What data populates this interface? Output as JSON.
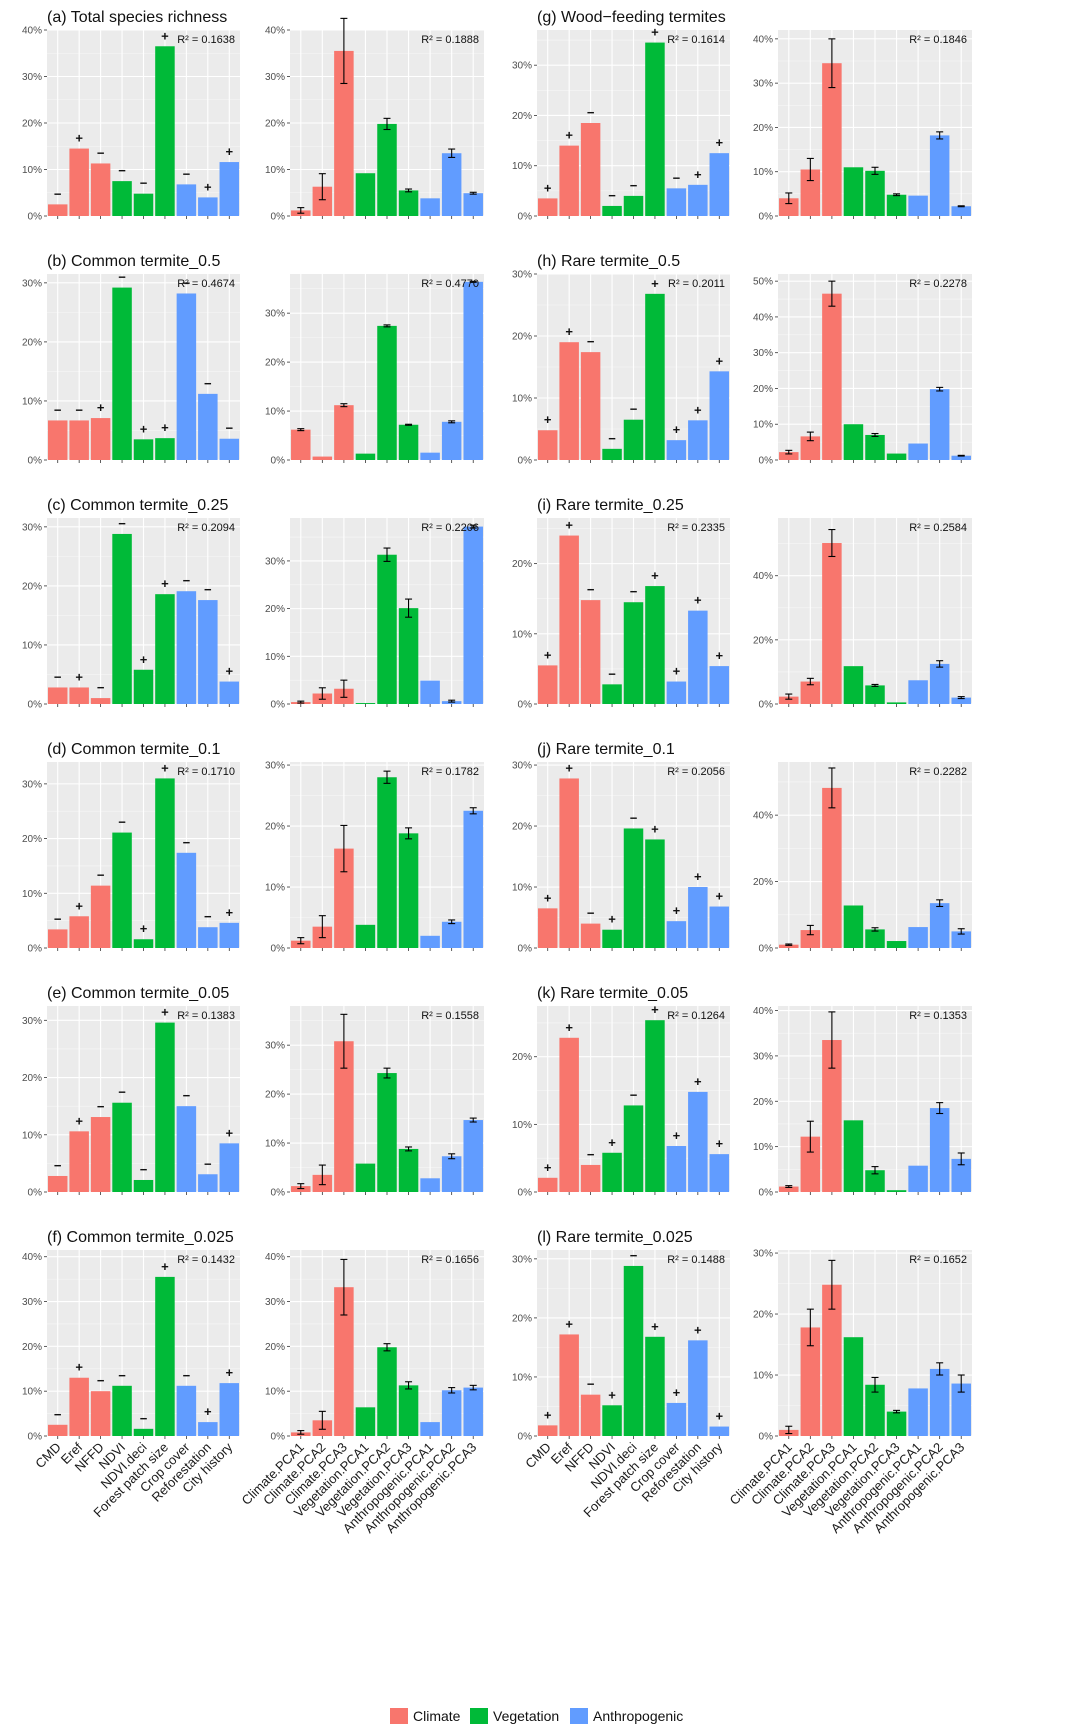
{
  "colors": {
    "Climate": "#F8766D",
    "Vegetation": "#00BA38",
    "Anthropogenic": "#619CFF",
    "panel_bg": "#EBEBEB",
    "grid": "#FFFFFF"
  },
  "legend": {
    "entries": [
      "Climate",
      "Vegetation",
      "Anthropogenic"
    ]
  },
  "chart_data": [
    {
      "type": "bar",
      "id": "a_left",
      "title": "(a) Total species richness",
      "r2": "R² = 0.1638",
      "ylim": [
        0,
        40
      ],
      "yticks": [
        0,
        10,
        20,
        30,
        40
      ],
      "values": [
        2.5,
        14.5,
        11.3,
        7.5,
        4.8,
        36.5,
        6.8,
        4,
        11.6
      ],
      "signs": [
        "−",
        "+",
        "−",
        "−",
        "−",
        "+",
        "−",
        "+",
        "+"
      ]
    },
    {
      "type": "bar",
      "id": "a_right",
      "title": "",
      "r2": "R² = 0.1888",
      "ylim": [
        0,
        40
      ],
      "yticks": [
        0,
        10,
        20,
        30,
        40
      ],
      "values": [
        1.2,
        6.3,
        35.5,
        9.2,
        19.8,
        5.5,
        3.8,
        13.5,
        4.9
      ],
      "errors": [
        0.6,
        2.8,
        7,
        0,
        1.2,
        0.3,
        0,
        0.9,
        0.2
      ]
    },
    {
      "type": "bar",
      "id": "g_left",
      "title": "(g) Wood−feeding termites",
      "r2": "R² = 0.1614",
      "ylim": [
        0,
        37
      ],
      "yticks": [
        0,
        10,
        20,
        30
      ],
      "values": [
        3.5,
        14,
        18.5,
        2,
        4,
        34.5,
        5.5,
        6.2,
        12.5
      ],
      "signs": [
        "+",
        "+",
        "−",
        "−",
        "−",
        "+",
        "−",
        "+",
        "+"
      ]
    },
    {
      "type": "bar",
      "id": "g_right",
      "title": "",
      "r2": "R² = 0.1846",
      "ylim": [
        0,
        42
      ],
      "yticks": [
        0,
        10,
        20,
        30,
        40
      ],
      "values": [
        4,
        10.5,
        34.5,
        11,
        10.2,
        4.8,
        4.6,
        18.2,
        2.2
      ],
      "errors": [
        1.2,
        2.5,
        5.5,
        0,
        0.8,
        0.2,
        0,
        0.8,
        0.1
      ]
    },
    {
      "type": "bar",
      "id": "b_left",
      "title": "(b) Common termite_0.5",
      "r2": "R² = 0.4674",
      "ylim": [
        0,
        31.5
      ],
      "yticks": [
        0,
        10,
        20,
        30
      ],
      "values": [
        6.7,
        6.7,
        7.1,
        29.2,
        3.5,
        3.7,
        28.2,
        11.2,
        3.6
      ],
      "signs": [
        "−",
        "−",
        "+",
        "−",
        "+",
        "+",
        "−",
        "−",
        "−"
      ]
    },
    {
      "type": "bar",
      "id": "b_right",
      "title": "",
      "r2": "R² = 0.4770",
      "ylim": [
        0,
        38
      ],
      "yticks": [
        0,
        10,
        20,
        30
      ],
      "values": [
        6.2,
        0.7,
        11.2,
        1.3,
        27.4,
        7.2,
        1.5,
        7.8,
        36.4
      ],
      "errors": [
        0.2,
        0,
        0.3,
        0,
        0.2,
        0.1,
        0,
        0.2,
        0.1
      ]
    },
    {
      "type": "bar",
      "id": "h_left",
      "title": "(h) Rare termite_0.5",
      "r2": "R² = 0.2011",
      "ylim": [
        0,
        30
      ],
      "yticks": [
        0,
        10,
        20,
        30
      ],
      "values": [
        4.8,
        19,
        17.4,
        1.8,
        6.5,
        26.8,
        3.2,
        6.4,
        14.3
      ],
      "signs": [
        "+",
        "+",
        "−",
        "−",
        "−",
        "+",
        "+",
        "+",
        "+"
      ]
    },
    {
      "type": "bar",
      "id": "h_right",
      "title": "",
      "r2": "R² = 0.2278",
      "ylim": [
        0,
        52
      ],
      "yticks": [
        0,
        10,
        20,
        30,
        40,
        50
      ],
      "values": [
        2.2,
        6.6,
        46.5,
        10,
        7,
        1.8,
        4.6,
        19.8,
        1.2
      ],
      "errors": [
        0.5,
        1.2,
        3.5,
        0,
        0.4,
        0,
        0,
        0.5,
        0.1
      ]
    },
    {
      "type": "bar",
      "id": "c_left",
      "title": "(c) Common termite_0.25",
      "r2": "R² = 0.2094",
      "ylim": [
        0,
        31.5
      ],
      "yticks": [
        0,
        10,
        20,
        30
      ],
      "values": [
        2.8,
        2.8,
        1,
        28.8,
        5.8,
        18.6,
        19.1,
        17.6,
        3.8
      ],
      "signs": [
        "−",
        "+",
        "−",
        "−",
        "+",
        "+",
        "−",
        "−",
        "+"
      ]
    },
    {
      "type": "bar",
      "id": "c_right",
      "title": "",
      "r2": "R² = 0.2206",
      "ylim": [
        0,
        39
      ],
      "yticks": [
        0,
        10,
        20,
        30
      ],
      "values": [
        0.4,
        2.2,
        3.2,
        0.2,
        31.3,
        20.1,
        4.9,
        0.6,
        37.2
      ],
      "errors": [
        0.2,
        1.2,
        1.8,
        0,
        1.4,
        1.9,
        0,
        0.2,
        0.3
      ]
    },
    {
      "type": "bar",
      "id": "i_left",
      "title": "(i) Rare termite_0.25",
      "r2": "R² = 0.2335",
      "ylim": [
        0,
        26.5
      ],
      "yticks": [
        0,
        10,
        20
      ],
      "values": [
        5.5,
        24,
        14.8,
        2.8,
        14.5,
        16.8,
        3.2,
        13.3,
        5.4
      ],
      "signs": [
        "+",
        "+",
        "−",
        "−",
        "−",
        "+",
        "+",
        "+",
        "+"
      ]
    },
    {
      "type": "bar",
      "id": "i_right",
      "title": "",
      "r2": "R² = 0.2584",
      "ylim": [
        0,
        58
      ],
      "yticks": [
        0,
        20,
        40
      ],
      "values": [
        2.3,
        7,
        50.2,
        11.8,
        5.8,
        0.5,
        7.4,
        12.5,
        2
      ],
      "errors": [
        0.8,
        1,
        4.2,
        0,
        0.3,
        0,
        0,
        1,
        0.3
      ]
    },
    {
      "type": "bar",
      "id": "d_left",
      "title": "(d) Common termite_0.1",
      "r2": "R² = 0.1710",
      "ylim": [
        0,
        34
      ],
      "yticks": [
        0,
        10,
        20,
        30
      ],
      "values": [
        3.4,
        5.8,
        11.4,
        21.1,
        1.6,
        31,
        17.4,
        3.8,
        4.6
      ],
      "signs": [
        "−",
        "+",
        "−",
        "−",
        "+",
        "+",
        "−",
        "−",
        "+"
      ]
    },
    {
      "type": "bar",
      "id": "d_right",
      "title": "",
      "r2": "R² = 0.1782",
      "ylim": [
        0,
        30.5
      ],
      "yticks": [
        0,
        10,
        20,
        30
      ],
      "values": [
        1.2,
        3.5,
        16.3,
        3.8,
        28,
        18.8,
        2,
        4.3,
        22.5
      ],
      "errors": [
        0.5,
        1.8,
        3.8,
        0,
        1,
        0.9,
        0,
        0.3,
        0.5
      ]
    },
    {
      "type": "bar",
      "id": "j_left",
      "title": "(j) Rare termite_0.1",
      "r2": "R² = 0.2056",
      "ylim": [
        0,
        30.5
      ],
      "yticks": [
        0,
        10,
        20,
        30
      ],
      "values": [
        6.5,
        27.8,
        4,
        3,
        19.6,
        17.8,
        4.4,
        10,
        6.8
      ],
      "signs": [
        "+",
        "+",
        "−",
        "+",
        "−",
        "+",
        "+",
        "+",
        "+"
      ]
    },
    {
      "type": "bar",
      "id": "j_right",
      "title": "",
      "r2": "R² = 0.2282",
      "ylim": [
        0,
        56
      ],
      "yticks": [
        0,
        20,
        40
      ],
      "values": [
        1,
        5.4,
        48.2,
        12.8,
        5.6,
        2.1,
        6.3,
        13.5,
        5
      ],
      "errors": [
        0.2,
        1.4,
        6,
        0,
        0.5,
        0,
        0,
        1,
        0.8
      ]
    },
    {
      "type": "bar",
      "id": "e_left",
      "title": "(e) Common termite_0.05",
      "r2": "R² = 0.1383",
      "ylim": [
        0,
        32.5
      ],
      "yticks": [
        0,
        10,
        20,
        30
      ],
      "values": [
        2.8,
        10.6,
        13.1,
        15.6,
        2.1,
        29.6,
        15,
        3.1,
        8.5
      ],
      "signs": [
        "−",
        "+",
        "−",
        "−",
        "−",
        "+",
        "−",
        "−",
        "+"
      ]
    },
    {
      "type": "bar",
      "id": "e_right",
      "title": "",
      "r2": "R² = 0.1558",
      "ylim": [
        0,
        38
      ],
      "yticks": [
        0,
        10,
        20,
        30
      ],
      "values": [
        1.2,
        3.5,
        30.8,
        5.8,
        24.3,
        8.8,
        2.8,
        7.3,
        14.7
      ],
      "errors": [
        0.5,
        2,
        5.5,
        0,
        1,
        0.4,
        0,
        0.5,
        0.4
      ]
    },
    {
      "type": "bar",
      "id": "k_left",
      "title": "(k) Rare termite_0.05",
      "r2": "R² = 0.1264",
      "ylim": [
        0,
        27.5
      ],
      "yticks": [
        0,
        10,
        20
      ],
      "values": [
        2.1,
        22.8,
        4,
        5.8,
        12.8,
        25.4,
        6.8,
        14.8,
        5.6
      ],
      "signs": [
        "+",
        "+",
        "−",
        "+",
        "−",
        "+",
        "+",
        "+",
        "+"
      ]
    },
    {
      "type": "bar",
      "id": "k_right",
      "title": "",
      "r2": "R² = 0.1353",
      "ylim": [
        0,
        41
      ],
      "yticks": [
        0,
        10,
        20,
        30,
        40
      ],
      "values": [
        1.2,
        12.2,
        33.5,
        15.8,
        4.8,
        0.4,
        5.8,
        18.5,
        7.3
      ],
      "errors": [
        0.2,
        3.4,
        6.2,
        0,
        0.8,
        0,
        0,
        1.2,
        1.3
      ]
    },
    {
      "type": "bar",
      "id": "f_left",
      "title": "(f) Common termite_0.025",
      "r2": "R² = 0.1432",
      "ylim": [
        0,
        41.5
      ],
      "yticks": [
        0,
        10,
        20,
        30,
        40
      ],
      "values": [
        2.5,
        13,
        10,
        11.2,
        1.6,
        35.5,
        11.2,
        3.1,
        11.8
      ],
      "signs": [
        "−",
        "+",
        "−",
        "−",
        "−",
        "+",
        "−",
        "+",
        "+"
      ]
    },
    {
      "type": "bar",
      "id": "f_right",
      "title": "",
      "r2": "R² = 0.1656",
      "ylim": [
        0,
        41.5
      ],
      "yticks": [
        0,
        10,
        20,
        30,
        40
      ],
      "values": [
        0.8,
        3.5,
        33.2,
        6.4,
        19.8,
        11.3,
        3.1,
        10.2,
        10.8
      ],
      "errors": [
        0.4,
        2,
        6.2,
        0,
        0.8,
        0.8,
        0,
        0.6,
        0.5
      ]
    },
    {
      "type": "bar",
      "id": "l_left",
      "title": "(l) Rare termite_0.025",
      "r2": "R² = 0.1488",
      "ylim": [
        0,
        31.5
      ],
      "yticks": [
        0,
        10,
        20,
        30
      ],
      "values": [
        1.8,
        17.2,
        7,
        5.2,
        28.8,
        16.8,
        5.6,
        16.2,
        1.6
      ],
      "signs": [
        "+",
        "+",
        "−",
        "+",
        "−",
        "+",
        "+",
        "+",
        "+"
      ]
    },
    {
      "type": "bar",
      "id": "l_right",
      "title": "",
      "r2": "R² = 0.1652",
      "ylim": [
        0,
        30.5
      ],
      "yticks": [
        0,
        10,
        20,
        30
      ],
      "values": [
        1,
        17.8,
        24.8,
        16.2,
        8.4,
        4,
        7.8,
        11,
        8.6
      ],
      "errors": [
        0.6,
        3,
        4,
        0,
        1.2,
        0.2,
        0,
        1,
        1.4
      ]
    }
  ],
  "categories_left": [
    "CMD",
    "Eref",
    "NFFD",
    "NDVI",
    "NDVI.deci",
    "Forest patch size",
    "Crop cover",
    "Reforestation",
    "City history"
  ],
  "categories_right": [
    "Climate.PCA1",
    "Climate.PCA2",
    "Climate.PCA3",
    "Vegetation.PCA1",
    "Vegetation.PCA2",
    "Vegetation.PCA3",
    "Anthropogenic.PCA1",
    "Anthropogenic.PCA2",
    "Anthropogenic.PCA3"
  ],
  "groups": [
    "Climate",
    "Climate",
    "Climate",
    "Vegetation",
    "Vegetation",
    "Vegetation",
    "Anthropogenic",
    "Anthropogenic",
    "Anthropogenic"
  ]
}
